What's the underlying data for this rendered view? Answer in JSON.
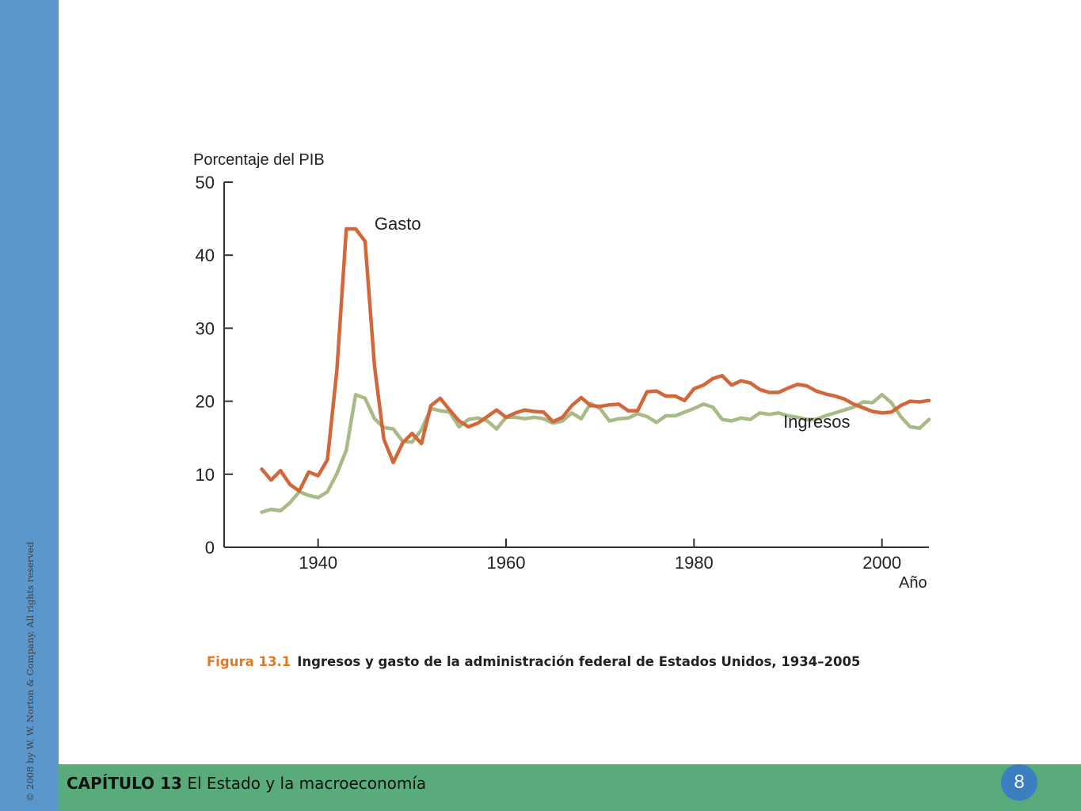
{
  "sidebar": {
    "copyright": "© 2008 by W. W. Norton & Company. All rights reserved"
  },
  "footer": {
    "chapter_label": "CAPÍTULO 13",
    "chapter_title": "El Estado y la macroeconomía",
    "page_number": "8"
  },
  "caption": {
    "figure_label": "Figura 13.1",
    "text": "Ingresos y gasto de la administración federal de Estados Unidos, 1934–2005"
  },
  "chart_data": {
    "type": "line",
    "ylabel": "Porcentaje del PIB",
    "xlabel": "Año",
    "xlim": [
      1930,
      2005
    ],
    "ylim": [
      0,
      50
    ],
    "xticks": [
      1940,
      1960,
      1980,
      2000
    ],
    "yticks": [
      0,
      10,
      20,
      30,
      40,
      50
    ],
    "grid": false,
    "series": [
      {
        "name": "Gasto",
        "color": "#d2683a",
        "x": [
          1934,
          1935,
          1936,
          1937,
          1938,
          1939,
          1940,
          1941,
          1942,
          1943,
          1944,
          1945,
          1946,
          1947,
          1948,
          1949,
          1950,
          1951,
          1952,
          1953,
          1954,
          1955,
          1956,
          1957,
          1958,
          1959,
          1960,
          1961,
          1962,
          1963,
          1964,
          1965,
          1966,
          1967,
          1968,
          1969,
          1970,
          1971,
          1972,
          1973,
          1974,
          1975,
          1976,
          1977,
          1978,
          1979,
          1980,
          1981,
          1982,
          1983,
          1984,
          1985,
          1986,
          1987,
          1988,
          1989,
          1990,
          1991,
          1992,
          1993,
          1994,
          1995,
          1996,
          1997,
          1998,
          1999,
          2000,
          2001,
          2002,
          2003,
          2004,
          2005
        ],
        "values": [
          10.7,
          9.2,
          10.5,
          8.6,
          7.7,
          10.3,
          9.8,
          12.0,
          24.3,
          43.6,
          43.6,
          41.9,
          24.8,
          14.8,
          11.6,
          14.3,
          15.6,
          14.2,
          19.4,
          20.4,
          18.8,
          17.3,
          16.5,
          17.0,
          17.9,
          18.8,
          17.8,
          18.4,
          18.8,
          18.6,
          18.5,
          17.2,
          17.8,
          19.4,
          20.5,
          19.4,
          19.3,
          19.5,
          19.6,
          18.7,
          18.7,
          21.3,
          21.4,
          20.7,
          20.7,
          20.1,
          21.7,
          22.2,
          23.1,
          23.5,
          22.2,
          22.8,
          22.5,
          21.6,
          21.2,
          21.2,
          21.8,
          22.3,
          22.1,
          21.4,
          21.0,
          20.7,
          20.3,
          19.6,
          19.1,
          18.6,
          18.4,
          18.5,
          19.4,
          20.0,
          19.9,
          20.1
        ]
      },
      {
        "name": "Ingresos",
        "color": "#a8ba86",
        "x": [
          1934,
          1935,
          1936,
          1937,
          1938,
          1939,
          1940,
          1941,
          1942,
          1943,
          1944,
          1945,
          1946,
          1947,
          1948,
          1949,
          1950,
          1951,
          1952,
          1953,
          1954,
          1955,
          1956,
          1957,
          1958,
          1959,
          1960,
          1961,
          1962,
          1963,
          1964,
          1965,
          1966,
          1967,
          1968,
          1969,
          1970,
          1971,
          1972,
          1973,
          1974,
          1975,
          1976,
          1977,
          1978,
          1979,
          1980,
          1981,
          1982,
          1983,
          1984,
          1985,
          1986,
          1987,
          1988,
          1989,
          1990,
          1991,
          1992,
          1993,
          1994,
          1995,
          1996,
          1997,
          1998,
          1999,
          2000,
          2001,
          2002,
          2003,
          2004,
          2005
        ],
        "values": [
          4.8,
          5.2,
          5.0,
          6.1,
          7.6,
          7.1,
          6.8,
          7.6,
          10.1,
          13.3,
          20.9,
          20.4,
          17.6,
          16.4,
          16.2,
          14.5,
          14.4,
          16.1,
          19.0,
          18.7,
          18.5,
          16.5,
          17.5,
          17.7,
          17.3,
          16.2,
          17.8,
          17.8,
          17.6,
          17.8,
          17.6,
          17.0,
          17.3,
          18.4,
          17.6,
          19.7,
          19.0,
          17.3,
          17.6,
          17.7,
          18.3,
          17.9,
          17.1,
          18.0,
          18.0,
          18.5,
          19.0,
          19.6,
          19.2,
          17.5,
          17.3,
          17.7,
          17.5,
          18.4,
          18.2,
          18.4,
          18.0,
          17.8,
          17.5,
          17.5,
          18.0,
          18.4,
          18.8,
          19.2,
          19.9,
          19.8,
          20.9,
          19.8,
          17.9,
          16.5,
          16.3,
          17.5
        ]
      }
    ],
    "annotations": [
      {
        "text": "Gasto",
        "x": 1946,
        "y": 43.5
      },
      {
        "text": "Ingresos",
        "x": 1989.5,
        "y": 16.4
      }
    ]
  }
}
